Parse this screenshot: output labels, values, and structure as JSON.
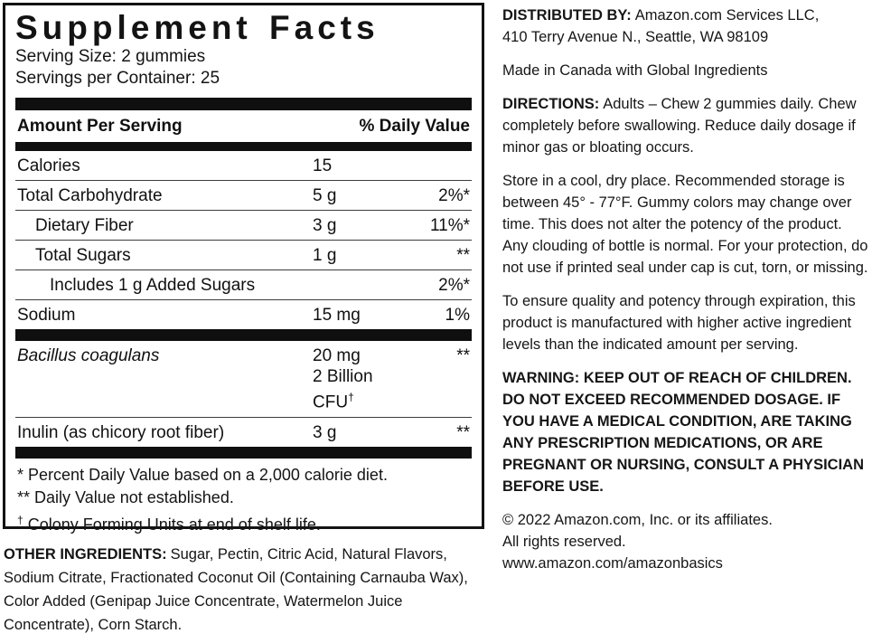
{
  "facts": {
    "title": "Supplement Facts",
    "serving_size": "Serving Size: 2 gummies",
    "servings_per_container": "Servings per Container: 25",
    "header": {
      "amount_col": "Amount Per Serving",
      "dv_col": "% Daily Value"
    },
    "rows": [
      {
        "name": "Calories",
        "amount": "15",
        "dv": ""
      },
      {
        "name": "Total Carbohydrate",
        "amount": "5 g",
        "dv": "2%*"
      },
      {
        "name": "Dietary Fiber",
        "amount": "3 g",
        "dv": "11%*"
      },
      {
        "name": "Total Sugars",
        "amount": "1 g",
        "dv": "**"
      },
      {
        "name": "Includes 1 g Added Sugars",
        "amount": "",
        "dv": "2%*"
      },
      {
        "name": "Sodium",
        "amount": "15 mg",
        "dv": "1%"
      }
    ],
    "rows2": [
      {
        "name": "Bacillus coagulans",
        "amount": "20 mg",
        "amount2": "2 Billion CFU",
        "dagger": "†",
        "dv": "**"
      },
      {
        "name": "Inulin (as chicory root fiber)",
        "amount": "3 g",
        "dv": "**"
      }
    ],
    "footnotes": [
      {
        "sym": "*",
        "text": "Percent Daily Value based on a 2,000 calorie diet."
      },
      {
        "sym": "**",
        "text": "Daily Value not established."
      },
      {
        "sym": "†",
        "text": "Colony Forming Units at end of shelf life."
      }
    ],
    "other_ingredients_label": "OTHER INGREDIENTS:",
    "other_ingredients_text": "Sugar, Pectin, Citric Acid, Natural Flavors, Sodium Citrate, Fractionated Coconut Oil (Containing Carnauba Wax), Color Added (Genipap Juice Concentrate, Watermelon Juice Concentrate), Corn Starch."
  },
  "info": {
    "distributed_label": "DISTRIBUTED BY:",
    "distributed_line1": "Amazon.com Services LLC,",
    "distributed_line2": "410 Terry Avenue N., Seattle, WA 98109",
    "made_in": "Made in Canada with Global Ingredients",
    "directions_label": "DIRECTIONS:",
    "directions_text": "Adults – Chew 2 gummies daily. Chew completely before swallowing. Reduce daily dosage if minor gas or bloating occurs.",
    "storage_text": "Store in a cool, dry place. Recommended storage is between 45° - 77°F. Gummy colors may change over time. This does not alter the potency of the product. Any clouding of bottle is normal. For your protection, do not use if printed seal under cap is cut, torn, or missing.",
    "quality_text": "To ensure quality and potency through expiration, this product is manufactured with higher active ingredient levels than the indicated amount per serving.",
    "warning_label": "WARNING:",
    "warning_text": "KEEP OUT OF REACH OF CHILDREN. DO NOT EXCEED RECOMMENDED DOSAGE. IF YOU HAVE A MEDICAL CONDITION, ARE TAKING ANY PRESCRIPTION MEDICATIONS, OR ARE PREGNANT OR NURSING, CONSULT A PHYSICIAN BEFORE USE.",
    "copyright_line1": "© 2022 Amazon.com, Inc. or its affiliates.",
    "copyright_line2": "All rights reserved.",
    "copyright_line3": "www.amazon.com/amazonbasics"
  }
}
